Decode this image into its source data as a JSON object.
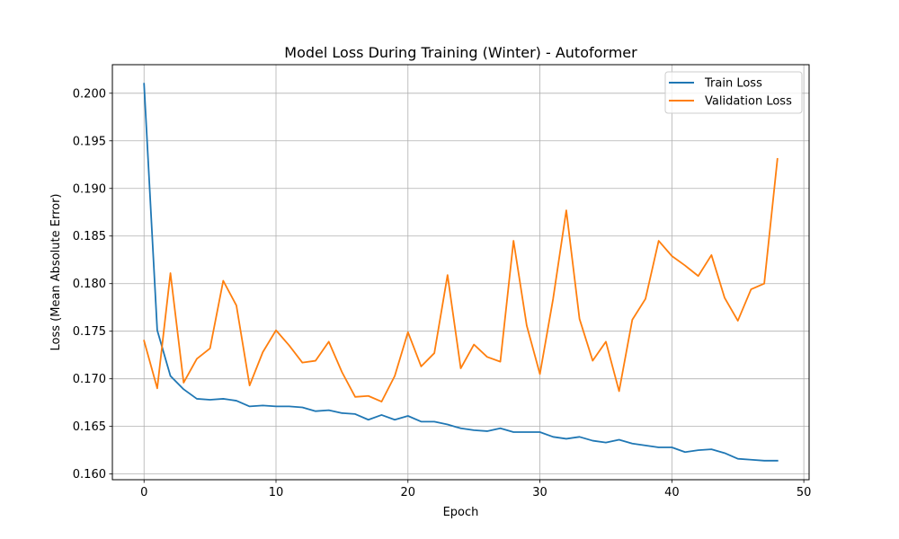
{
  "chart_data": {
    "type": "line",
    "title": "Model Loss During Training (Winter) - Autoformer",
    "xlabel": "Epoch",
    "ylabel": "Loss (Mean Absolute Error)",
    "xlim": [
      -2.4,
      50.4
    ],
    "ylim": [
      0.1594,
      0.203
    ],
    "xticks": [
      0,
      10,
      20,
      30,
      40,
      50
    ],
    "yticks": [
      0.16,
      0.165,
      0.17,
      0.175,
      0.18,
      0.185,
      0.19,
      0.195,
      0.2
    ],
    "xtick_labels": [
      "0",
      "10",
      "20",
      "30",
      "40",
      "50"
    ],
    "ytick_labels": [
      "0.160",
      "0.165",
      "0.170",
      "0.175",
      "0.180",
      "0.185",
      "0.190",
      "0.195",
      "0.200"
    ],
    "grid": true,
    "legend_position": "top-right",
    "series": [
      {
        "name": "Train Loss",
        "color": "#1f77b4",
        "values": [
          0.201,
          0.1751,
          0.1703,
          0.1689,
          0.1679,
          0.1678,
          0.1679,
          0.1677,
          0.1671,
          0.1672,
          0.1671,
          0.1671,
          0.167,
          0.1666,
          0.1667,
          0.1664,
          0.1663,
          0.1657,
          0.1662,
          0.1657,
          0.1661,
          0.1655,
          0.1655,
          0.1652,
          0.1648,
          0.1646,
          0.1645,
          0.1648,
          0.1644,
          0.1644,
          0.1644,
          0.1639,
          0.1637,
          0.1639,
          0.1635,
          0.1633,
          0.1636,
          0.1632,
          0.163,
          0.1628,
          0.1628,
          0.1623,
          0.1625,
          0.1626,
          0.1622,
          0.1616,
          0.1615,
          0.1614,
          0.1614
        ]
      },
      {
        "name": "Validation Loss",
        "color": "#ff7f0e",
        "values": [
          0.174,
          0.169,
          0.1811,
          0.1696,
          0.1721,
          0.1732,
          0.1803,
          0.1777,
          0.1693,
          0.1728,
          0.1751,
          0.1735,
          0.1717,
          0.1719,
          0.1739,
          0.1707,
          0.1681,
          0.1682,
          0.1676,
          0.1703,
          0.1749,
          0.1713,
          0.1727,
          0.1809,
          0.1711,
          0.1736,
          0.1723,
          0.1718,
          0.1845,
          0.1756,
          0.1705,
          0.1784,
          0.1877,
          0.1763,
          0.1719,
          0.1739,
          0.1687,
          0.1762,
          0.1784,
          0.1845,
          0.1829,
          0.1819,
          0.1808,
          0.183,
          0.1785,
          0.1761,
          0.1794,
          0.18,
          0.1931
        ]
      }
    ]
  }
}
